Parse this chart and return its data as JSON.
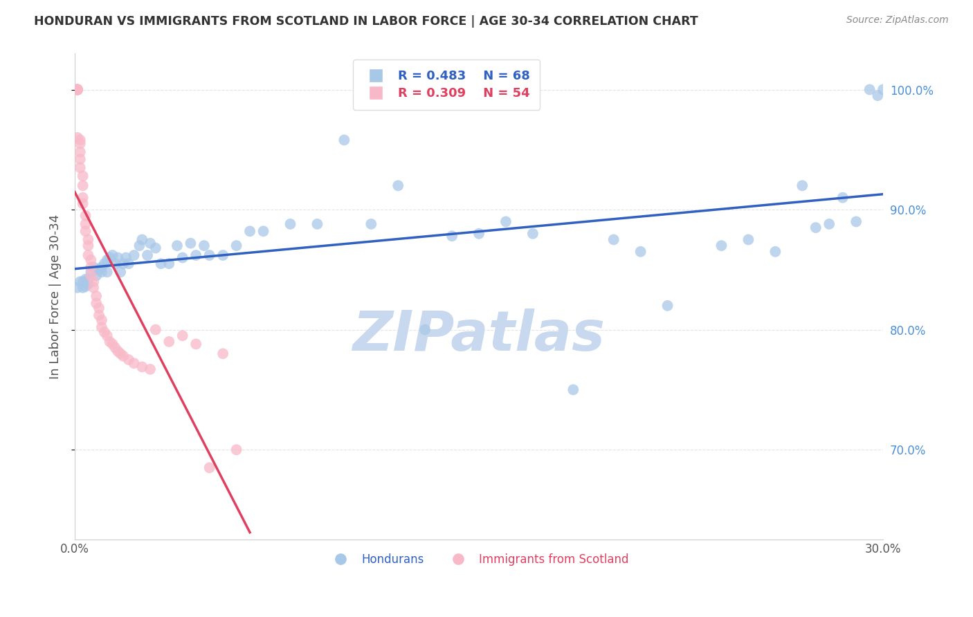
{
  "title": "HONDURAN VS IMMIGRANTS FROM SCOTLAND IN LABOR FORCE | AGE 30-34 CORRELATION CHART",
  "source": "Source: ZipAtlas.com",
  "ylabel": "In Labor Force | Age 30-34",
  "legend_blue_r": "R = 0.483",
  "legend_blue_n": "N = 68",
  "legend_pink_r": "R = 0.309",
  "legend_pink_n": "N = 54",
  "legend_blue_label": "Hondurans",
  "legend_pink_label": "Immigrants from Scotland",
  "xlim": [
    0.0,
    0.3
  ],
  "ylim": [
    0.625,
    1.03
  ],
  "right_yticks": [
    0.7,
    0.8,
    0.9,
    1.0
  ],
  "right_ytick_labels": [
    "70.0%",
    "80.0%",
    "90.0%",
    "100.0%"
  ],
  "xticks": [
    0.0,
    0.05,
    0.1,
    0.15,
    0.2,
    0.25,
    0.3
  ],
  "blue_color": "#a8c8e8",
  "blue_line_color": "#3060c0",
  "pink_color": "#f8b8c8",
  "pink_line_color": "#e04060",
  "grid_color": "#dddddd",
  "title_color": "#333333",
  "axis_label_color": "#555555",
  "right_tick_color": "#4a90d9",
  "watermark_color": "#c8d8ee",
  "blue_x": [
    0.001,
    0.002,
    0.003,
    0.003,
    0.004,
    0.004,
    0.005,
    0.005,
    0.006,
    0.007,
    0.008,
    0.009,
    0.01,
    0.01,
    0.011,
    0.012,
    0.012,
    0.013,
    0.014,
    0.015,
    0.016,
    0.017,
    0.018,
    0.019,
    0.02,
    0.022,
    0.024,
    0.025,
    0.027,
    0.028,
    0.03,
    0.032,
    0.035,
    0.038,
    0.04,
    0.043,
    0.045,
    0.048,
    0.05,
    0.055,
    0.06,
    0.065,
    0.07,
    0.08,
    0.09,
    0.1,
    0.11,
    0.12,
    0.13,
    0.14,
    0.15,
    0.16,
    0.17,
    0.185,
    0.2,
    0.21,
    0.22,
    0.24,
    0.25,
    0.26,
    0.27,
    0.275,
    0.28,
    0.285,
    0.29,
    0.295,
    0.298,
    0.3
  ],
  "blue_y": [
    0.835,
    0.84,
    0.835,
    0.84,
    0.836,
    0.842,
    0.838,
    0.842,
    0.848,
    0.852,
    0.845,
    0.85,
    0.848,
    0.852,
    0.855,
    0.848,
    0.858,
    0.86,
    0.862,
    0.855,
    0.86,
    0.848,
    0.855,
    0.86,
    0.855,
    0.862,
    0.87,
    0.875,
    0.862,
    0.872,
    0.868,
    0.855,
    0.855,
    0.87,
    0.86,
    0.872,
    0.862,
    0.87,
    0.862,
    0.862,
    0.87,
    0.882,
    0.882,
    0.888,
    0.888,
    0.958,
    0.888,
    0.92,
    0.8,
    0.878,
    0.88,
    0.89,
    0.88,
    0.75,
    0.875,
    0.865,
    0.82,
    0.87,
    0.875,
    0.865,
    0.92,
    0.885,
    0.888,
    0.91,
    0.89,
    1.0,
    0.995,
    1.0
  ],
  "pink_x": [
    0.001,
    0.001,
    0.001,
    0.001,
    0.001,
    0.001,
    0.001,
    0.001,
    0.001,
    0.002,
    0.002,
    0.002,
    0.002,
    0.002,
    0.003,
    0.003,
    0.003,
    0.003,
    0.004,
    0.004,
    0.004,
    0.005,
    0.005,
    0.005,
    0.006,
    0.006,
    0.006,
    0.007,
    0.007,
    0.008,
    0.008,
    0.009,
    0.009,
    0.01,
    0.01,
    0.011,
    0.012,
    0.013,
    0.014,
    0.015,
    0.016,
    0.017,
    0.018,
    0.02,
    0.022,
    0.025,
    0.028,
    0.03,
    0.035,
    0.04,
    0.045,
    0.05,
    0.055,
    0.06
  ],
  "pink_y": [
    1.0,
    1.0,
    1.0,
    1.0,
    1.0,
    1.0,
    1.0,
    1.0,
    0.96,
    0.958,
    0.955,
    0.948,
    0.942,
    0.935,
    0.928,
    0.92,
    0.91,
    0.905,
    0.895,
    0.888,
    0.882,
    0.875,
    0.87,
    0.862,
    0.858,
    0.852,
    0.845,
    0.84,
    0.835,
    0.828,
    0.822,
    0.818,
    0.812,
    0.808,
    0.802,
    0.798,
    0.795,
    0.79,
    0.788,
    0.785,
    0.782,
    0.78,
    0.778,
    0.775,
    0.772,
    0.769,
    0.767,
    0.8,
    0.79,
    0.795,
    0.788,
    0.685,
    0.78,
    0.7
  ]
}
